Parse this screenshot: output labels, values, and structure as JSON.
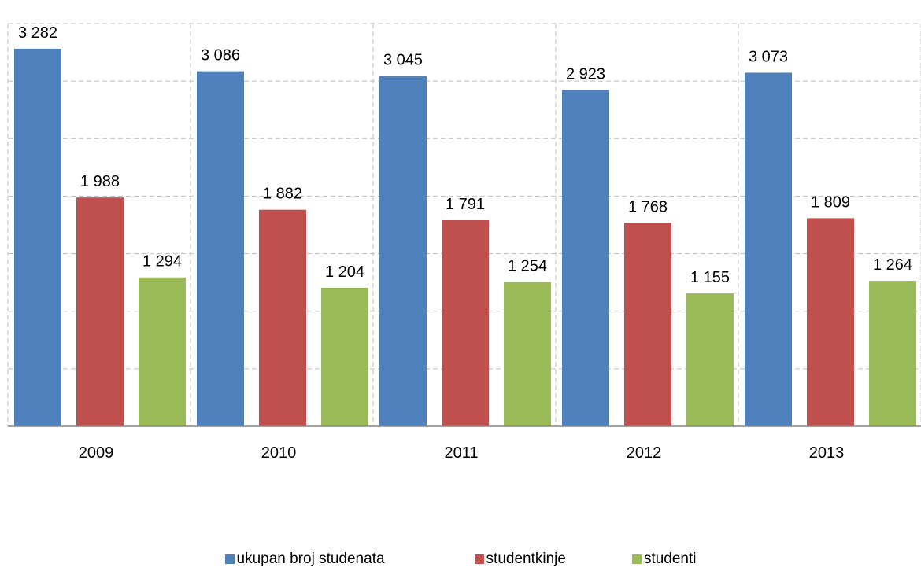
{
  "chart_data": {
    "type": "bar",
    "categories": [
      "2009",
      "2010",
      "2011",
      "2012",
      "2013"
    ],
    "series": [
      {
        "name": "ukupan broj studenata",
        "color": "#4F81BD",
        "values": [
          3282,
          3086,
          3045,
          2923,
          3073
        ],
        "labels": [
          "3 282",
          "3 086",
          "3 045",
          "2 923",
          "3 073"
        ]
      },
      {
        "name": "studentkinje",
        "color": "#C0504D",
        "values": [
          1988,
          1882,
          1791,
          1768,
          1809
        ],
        "labels": [
          "1 988",
          "1 882",
          "1 791",
          "1 768",
          "1 809"
        ]
      },
      {
        "name": "studenti",
        "color": "#9BBB59",
        "values": [
          1294,
          1204,
          1254,
          1155,
          1264
        ],
        "labels": [
          "1 294",
          "1 204",
          "1 254",
          "1 155",
          "1 264"
        ]
      }
    ],
    "ylim": [
      0,
      3500
    ],
    "grid": true,
    "legend_position": "bottom"
  }
}
